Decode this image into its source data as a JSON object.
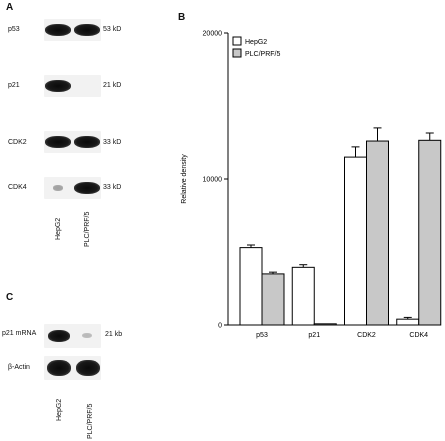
{
  "panel_a": {
    "letter": "A",
    "rows": [
      {
        "name": "p53",
        "size": "53 kD",
        "hepg2": 1.0,
        "plc": 1.0
      },
      {
        "name": "p21",
        "size": "21 kD",
        "hepg2": 1.0,
        "plc": 0.0
      },
      {
        "name": "CDK2",
        "size": "33 kD",
        "hepg2": 1.0,
        "plc": 1.0
      },
      {
        "name": "CDK4",
        "size": "33 kD",
        "hepg2": 0.15,
        "plc": 1.0
      }
    ],
    "lanes": [
      "HepG2",
      "PLC/PRF/5"
    ]
  },
  "panel_b": {
    "letter": "B"
  },
  "panel_c": {
    "letter": "C",
    "rows": [
      {
        "name": "p21 mRNA",
        "size": "21 kb"
      },
      {
        "name": "β-Actin",
        "size": ""
      }
    ],
    "lanes": [
      "HepG2",
      "PLC/PRF/5"
    ]
  },
  "chart_data": {
    "type": "bar",
    "categories": [
      "p53",
      "p21",
      "CDK2",
      "CDK4"
    ],
    "series": [
      {
        "name": "HepG2",
        "values": [
          5300,
          3950,
          11500,
          400
        ],
        "errors": [
          180,
          180,
          700,
          120
        ],
        "color": "#ffffff"
      },
      {
        "name": "PLC/PRF/5",
        "values": [
          3500,
          80,
          12600,
          12650
        ],
        "errors": [
          120,
          0,
          900,
          500
        ],
        "color": "#c8c8c8"
      }
    ],
    "ylabel": "Relative density",
    "ylim": [
      0,
      20000
    ],
    "yticks": [
      0,
      10000,
      20000
    ],
    "legend": "top-left",
    "grid": false
  }
}
